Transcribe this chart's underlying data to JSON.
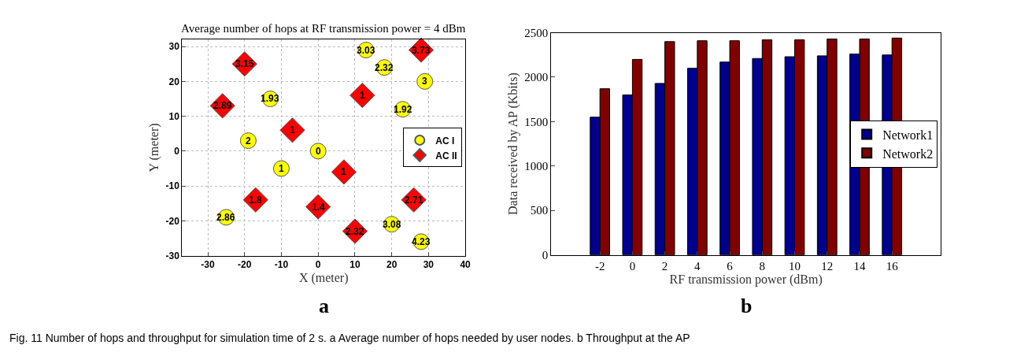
{
  "chart_data": [
    {
      "type": "scatter",
      "title": "Average number of hops at RF transmission power = 4 dBm",
      "xlabel": "X (meter)",
      "ylabel": "Y (meter)",
      "xlim": [
        -37,
        40
      ],
      "ylim": [
        -30,
        32
      ],
      "xticks": [
        -30,
        -20,
        -10,
        0,
        10,
        20,
        30,
        40
      ],
      "yticks": [
        -30,
        -20,
        -10,
        0,
        10,
        20,
        30
      ],
      "grid": true,
      "legend": "right",
      "series": [
        {
          "name": "AC I",
          "color": "#ffff00",
          "marker": "circle",
          "x": [
            13,
            18,
            29,
            -13,
            23,
            -19,
            0,
            -10,
            -25,
            20,
            28
          ],
          "values": [
            29,
            24,
            20,
            15,
            12,
            3,
            0,
            -5,
            -19,
            -21,
            -26
          ]
        },
        {
          "name": "AC II",
          "color": "#ff0000",
          "marker": "diamond",
          "x": [
            28,
            -20,
            -26,
            12,
            -7,
            7,
            -17,
            0,
            26,
            10
          ],
          "values": [
            29,
            25,
            13,
            16,
            6,
            -6,
            -14,
            -16,
            -14,
            -23
          ]
        }
      ],
      "annotations": [
        "a",
        {
          "text": "3.03",
          "x": 13,
          "y": 29
        },
        {
          "text": "2.32",
          "x": 18,
          "y": 24
        },
        {
          "text": "3",
          "x": 29,
          "y": 20
        },
        {
          "text": "1.93",
          "x": -13,
          "y": 15
        },
        {
          "text": "1.92",
          "x": 23,
          "y": 12
        },
        {
          "text": "2",
          "x": -19,
          "y": 3
        },
        {
          "text": "0",
          "x": 0,
          "y": 0
        },
        {
          "text": "1",
          "x": -10,
          "y": -5
        },
        {
          "text": "2.86",
          "x": -25,
          "y": -19
        },
        {
          "text": "3.08",
          "x": 20,
          "y": -21
        },
        {
          "text": "4.23",
          "x": 28,
          "y": -26
        },
        {
          "text": "3.73",
          "x": 28,
          "y": 29
        },
        {
          "text": "3.15",
          "x": -20,
          "y": 25
        },
        {
          "text": "2.89",
          "x": -26,
          "y": 13
        },
        {
          "text": "1",
          "x": 12,
          "y": 16
        },
        {
          "text": "1",
          "x": -7,
          "y": 6
        },
        {
          "text": "1",
          "x": 7,
          "y": -6
        },
        {
          "text": "1.8",
          "x": -17,
          "y": -14
        },
        {
          "text": "1.4",
          "x": 0,
          "y": -16
        },
        {
          "text": "2.71",
          "x": 26,
          "y": -14
        },
        {
          "text": "2.32",
          "x": 10,
          "y": -23
        }
      ]
    },
    {
      "type": "bar",
      "xlabel": "RF transmission power (dBm)",
      "ylabel": "Data received by AP (Kbits)",
      "categories": [
        "-2",
        "0",
        "2",
        "4",
        "6",
        "8",
        "10",
        "12",
        "14",
        "16"
      ],
      "ylim": [
        0,
        2500
      ],
      "yticks": [
        0,
        500,
        1000,
        1500,
        2000,
        2500
      ],
      "legend": "right",
      "series": [
        {
          "name": "Network1",
          "color": "#00008f",
          "values": [
            1550,
            1800,
            1930,
            2100,
            2170,
            2210,
            2230,
            2240,
            2260,
            2250
          ]
        },
        {
          "name": "Network2",
          "color": "#800000",
          "values": [
            1870,
            2200,
            2400,
            2410,
            2410,
            2420,
            2420,
            2430,
            2430,
            2440
          ]
        }
      ],
      "annotations": [
        "b",
        "Fig. 11 Number of hops and throughput for simulation time of 2 s. a Average number of hops needed by user nodes. b Throughput at the AP"
      ]
    }
  ]
}
